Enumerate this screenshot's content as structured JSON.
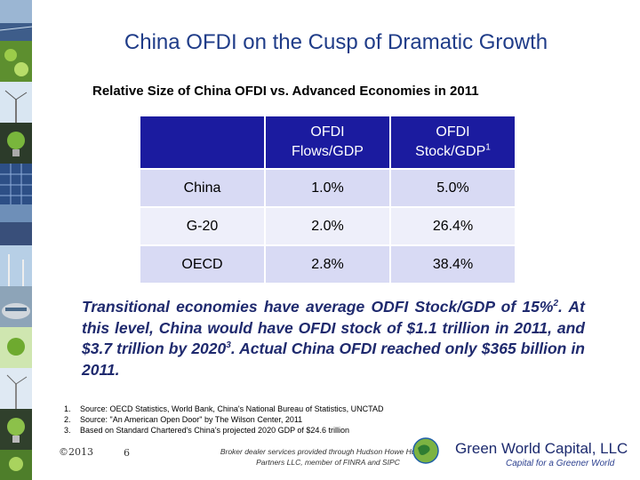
{
  "title": "China OFDI on the Cusp of Dramatic Growth",
  "subtitle": "Relative Size of China OFDI vs. Advanced Economies in 2011",
  "table": {
    "headers": [
      {
        "line1": "OFDI",
        "line2": "Flows/GDP",
        "sup": ""
      },
      {
        "line1": "OFDI",
        "line2": "Stock/GDP",
        "sup": "1"
      }
    ],
    "rows": [
      {
        "label": "China",
        "flows": "1.0%",
        "stock": "5.0%"
      },
      {
        "label": "G-20",
        "flows": "2.0%",
        "stock": "26.4%"
      },
      {
        "label": "OECD",
        "flows": "2.8%",
        "stock": "38.4%"
      }
    ]
  },
  "paragraph": {
    "part1": "Transitional economies have average ODFI Stock/GDP of 15%",
    "sup1": "2",
    "part2": ". At this level, China would have OFDI stock of $1.1 trillion in 2011, and $3.7 trillion by 2020",
    "sup2": "3",
    "part3": ". Actual China OFDI reached only $365 billion in 2011."
  },
  "footnotes": [
    {
      "num": "1.",
      "text": "Source: OECD Statistics, World Bank, China's National Bureau of Statistics, UNCTAD"
    },
    {
      "num": "2.",
      "text": "Source: \"An American Open Door\" by The Wilson Center, 2011"
    },
    {
      "num": "3.",
      "text": "Based on Standard Chartered's China's projected 2020 GDP of $24.6 trillion"
    }
  ],
  "footer": {
    "copyright": "©2013",
    "page_number": "6",
    "disclaimer_line1": "Broker dealer services provided through Hudson Howe Hunter &",
    "disclaimer_line2": "Partners LLC, member of FINRA and SIPC",
    "brand": "Green World Capital, LLC",
    "tagline": "Capital for a Greener World"
  },
  "colors": {
    "title": "#1f3c88",
    "table_header": "#1b1b9f",
    "row_band": "#d8daf4",
    "row_light": "#eeeffa",
    "paragraph": "#1f2a6e",
    "brand": "#1c2a6e"
  }
}
